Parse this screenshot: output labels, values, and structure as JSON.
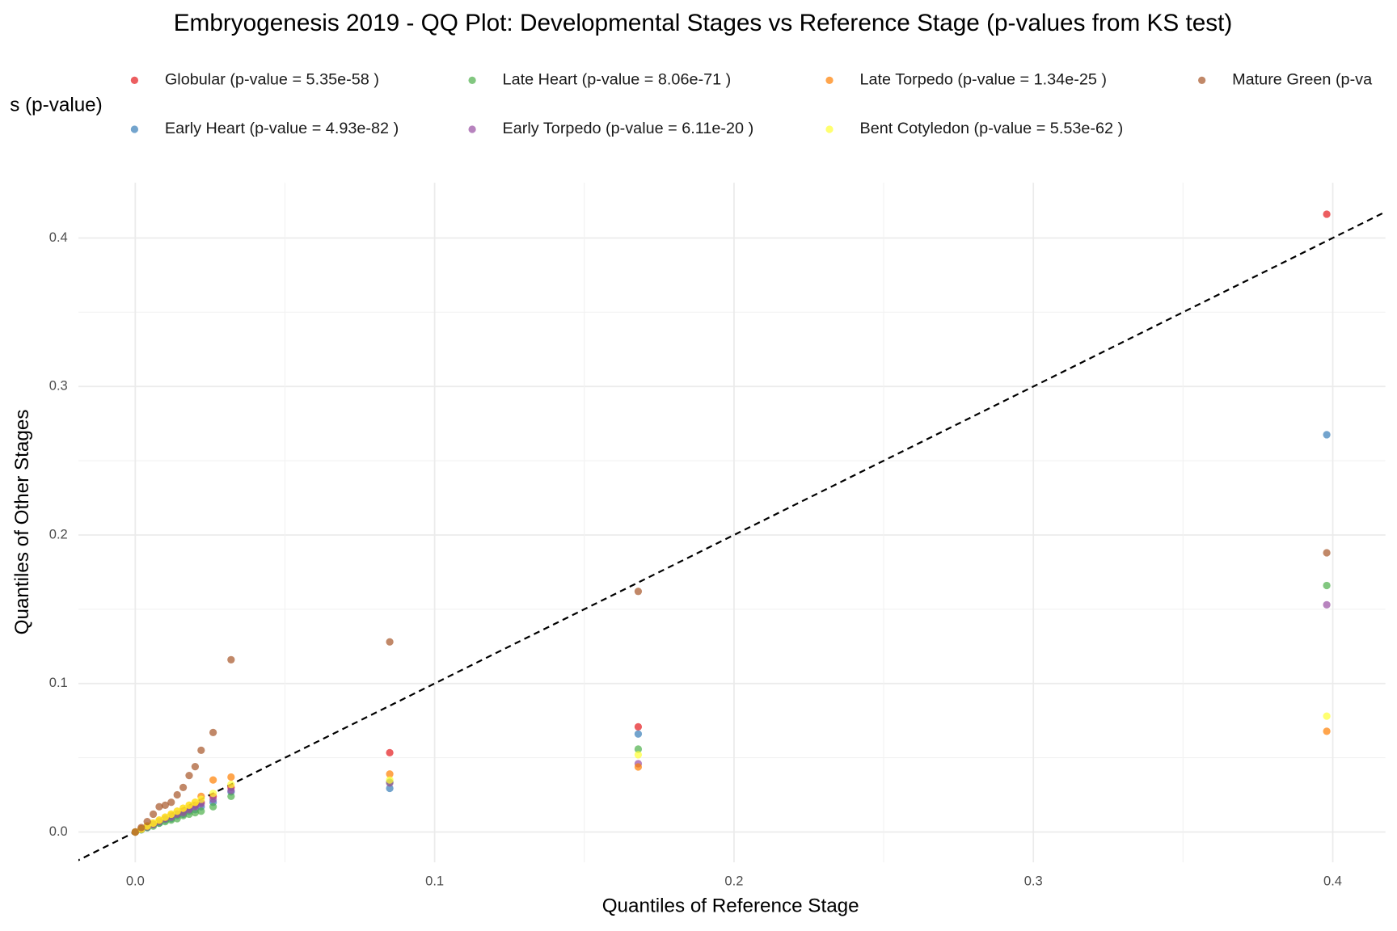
{
  "chart_data": {
    "type": "scatter",
    "title": "Embryogenesis 2019 - QQ Plot: Developmental Stages vs Reference Stage (p-values from KS test)",
    "x_label": "Quantiles of Reference Stage",
    "y_label": "Quantiles of Other Stages",
    "legend_title": "s (p-value)",
    "x": [
      0,
      0.002,
      0.004,
      0.006,
      0.008,
      0.01,
      0.012,
      0.014,
      0.016,
      0.018,
      0.02,
      0.022,
      0.026,
      0.032,
      0.085,
      0.168,
      0.398
    ],
    "series": [
      {
        "name": "Globular (p-value = 5.35e-58 )",
        "color": "#e41a1c",
        "values": [
          0,
          0.002,
          0.004,
          0.005,
          0.007,
          0.009,
          0.011,
          0.012,
          0.014,
          0.016,
          0.018,
          0.02,
          0.024,
          0.03,
          0.0534,
          0.0708,
          0.416
        ]
      },
      {
        "name": "Early Heart (p-value = 4.93e-82 )",
        "color": "#377eb8",
        "values": [
          0,
          0.0015,
          0.003,
          0.005,
          0.006,
          0.008,
          0.009,
          0.011,
          0.012,
          0.014,
          0.015,
          0.017,
          0.02,
          0.027,
          0.0294,
          0.066,
          0.2675
        ]
      },
      {
        "name": "Late Heart (p-value = 8.06e-71 )",
        "color": "#4daf4a",
        "values": [
          0,
          0.0015,
          0.003,
          0.004,
          0.006,
          0.007,
          0.008,
          0.009,
          0.011,
          0.012,
          0.013,
          0.014,
          0.017,
          0.024,
          0.0336,
          0.0558,
          0.166
        ]
      },
      {
        "name": "Early Torpedo (p-value = 6.11e-20 )",
        "color": "#984ea3",
        "values": [
          0,
          0.0018,
          0.0035,
          0.005,
          0.007,
          0.009,
          0.01,
          0.012,
          0.013,
          0.015,
          0.017,
          0.019,
          0.022,
          0.028,
          0.033,
          0.046,
          0.153
        ]
      },
      {
        "name": "Late Torpedo (p-value = 1.34e-25 )",
        "color": "#ff7f00",
        "values": [
          0,
          0.002,
          0.004,
          0.006,
          0.008,
          0.01,
          0.012,
          0.014,
          0.016,
          0.018,
          0.02,
          0.024,
          0.035,
          0.037,
          0.039,
          0.0438,
          0.0678
        ]
      },
      {
        "name": "Bent Cotyledon (p-value = 5.53e-62 )",
        "color": "#ffff33",
        "values": [
          0,
          0.0018,
          0.004,
          0.006,
          0.008,
          0.01,
          0.012,
          0.014,
          0.016,
          0.018,
          0.02,
          0.022,
          0.026,
          0.032,
          0.035,
          0.052,
          0.078
        ]
      },
      {
        "name": "Mature Green (p-va",
        "color": "#a65628",
        "values": [
          0,
          0.003,
          0.007,
          0.012,
          0.017,
          0.018,
          0.02,
          0.025,
          0.03,
          0.038,
          0.044,
          0.055,
          0.067,
          0.116,
          0.128,
          0.162,
          0.188
        ]
      }
    ],
    "xlim": [
      -0.019,
      0.4176
    ],
    "ylim": [
      -0.0204,
      0.4372
    ],
    "xticks": [
      {
        "value": 0,
        "label": "0.0"
      },
      0.1,
      0.2,
      0.3,
      0.4
    ],
    "yticks": [
      {
        "value": 0,
        "label": "0.0"
      },
      0.1,
      0.2,
      0.3,
      0.4
    ],
    "grid": true,
    "legend_position": "top"
  }
}
